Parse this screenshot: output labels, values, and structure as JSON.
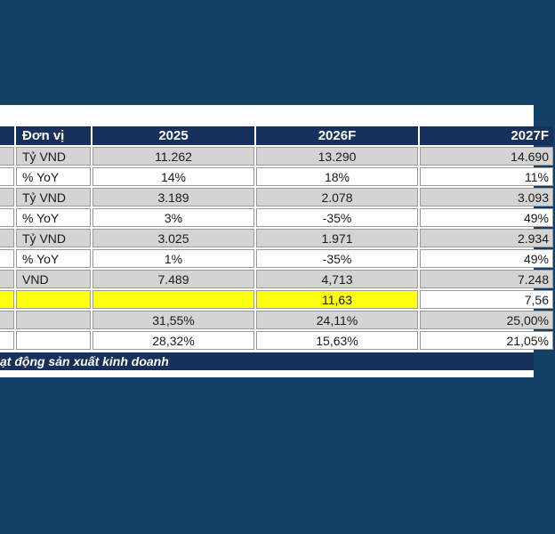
{
  "table": {
    "headers": [
      "Đơn vị",
      "2025",
      "2026F",
      "2027F"
    ],
    "rows": [
      {
        "unit": "Tỷ VND",
        "y2025": "11.262",
        "y2026": "13.290",
        "y2027": "14.690"
      },
      {
        "unit": "% YoY",
        "y2025": "14%",
        "y2026": "18%",
        "y2027": "11%"
      },
      {
        "unit": "Tỷ VND",
        "y2025": "3.189",
        "y2026": "2.078",
        "y2027": "3.093"
      },
      {
        "unit": "% YoY",
        "y2025": "3%",
        "y2026": "-35%",
        "y2027": "49%"
      },
      {
        "unit": "Tỷ VND",
        "y2025": "3.025",
        "y2026": "1.971",
        "y2027": "2.934"
      },
      {
        "unit": "% YoY",
        "y2025": "1%",
        "y2026": "-35%",
        "y2027": "49%"
      },
      {
        "unit": "VND",
        "y2025": "7.489",
        "y2026": "4,713",
        "y2027": "7.248"
      },
      {
        "unit": "",
        "y2025": "",
        "y2026": "11,63",
        "y2027": "7,56"
      },
      {
        "unit": "",
        "y2025": "31,55%",
        "y2026": "24,11%",
        "y2027": "25,00%"
      },
      {
        "unit": "",
        "y2025": "28,32%",
        "y2026": "15,63%",
        "y2027": "21,05%"
      }
    ]
  },
  "footer": "ạt động sản xuất kinh doanh",
  "colors": {
    "background": "#124066",
    "header": "#17305c",
    "highlight": "#ffff10",
    "gray_row": "#d4d4d4"
  }
}
